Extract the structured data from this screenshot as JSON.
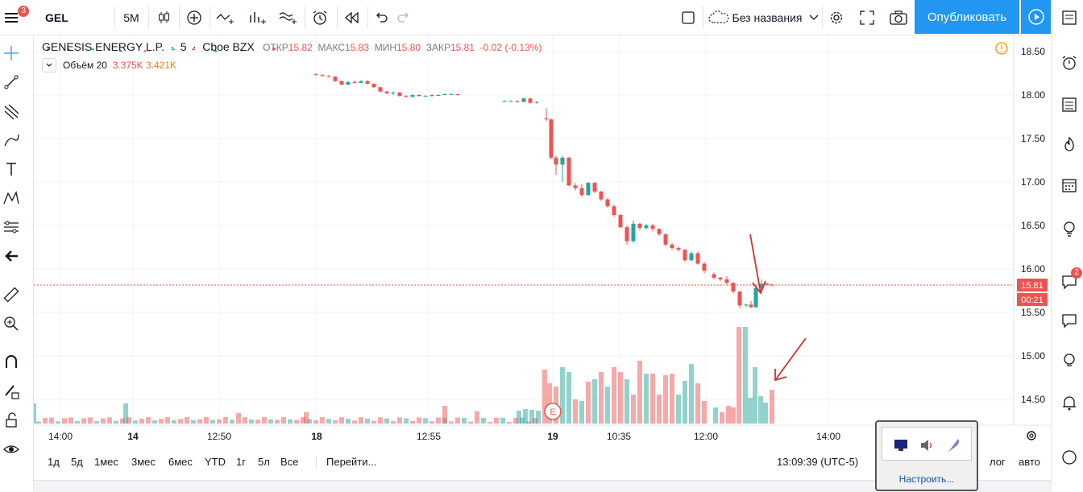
{
  "topbar": {
    "menu_badge": "3",
    "symbol": "GEL",
    "interval": "5М",
    "layout_name": "Без названия",
    "publish_label": "Опубликовать"
  },
  "legend": {
    "name": "GENESIS ENERGY L.P.",
    "interval": "5",
    "exchange": "Cboe BZX",
    "open_label": "ОТКР",
    "open": "15.82",
    "high_label": "МАКС",
    "high": "15.83",
    "low_label": "МИН",
    "low": "15.80",
    "close_label": "ЗАКР",
    "close": "15.81",
    "change": "-0.02 (-0.13%)",
    "volume_label": "Объём 20",
    "volume_value": "3.375K",
    "volume_ma": "3.421K"
  },
  "price_axis": {
    "ticks": [
      "18.50",
      "18.00",
      "17.50",
      "17.00",
      "16.50",
      "16.00",
      "15.50",
      "15.00",
      "14.50"
    ],
    "last_price": "15.81",
    "countdown": "00:21"
  },
  "time_axis": [
    "14:00",
    "14",
    "12:50",
    "18",
    "12:55",
    "19",
    "10:35",
    "12:00",
    "14:00"
  ],
  "bottombar": {
    "ranges": [
      "1д",
      "5д",
      "1мес",
      "3мес",
      "6мес",
      "YTD",
      "1г",
      "5л",
      "Все"
    ],
    "goto": "Перейти...",
    "clock": "13:09:39 (UTC-5)",
    "log": "лог",
    "auto": "авто"
  },
  "tray": {
    "link": "Настроить..."
  },
  "right_badge": "2",
  "earnings_marker": "E",
  "colors": {
    "up": "#26a69a",
    "down": "#ef5350",
    "accent": "#2196f3"
  },
  "chart_data": {
    "type": "candlestick",
    "title": "GENESIS ENERGY L.P. · 5 · Cboe BZX",
    "ylim": [
      14.2,
      18.65
    ],
    "candles_approx": [
      {
        "o": 18.24,
        "h": 18.25,
        "l": 18.22,
        "c": 18.23
      },
      {
        "o": 18.23,
        "h": 18.24,
        "l": 18.21,
        "c": 18.22
      },
      {
        "o": 18.22,
        "h": 18.23,
        "l": 18.2,
        "c": 18.21
      },
      {
        "o": 18.21,
        "h": 18.22,
        "l": 18.15,
        "c": 18.16
      },
      {
        "o": 18.16,
        "h": 18.17,
        "l": 18.11,
        "c": 18.12
      },
      {
        "o": 18.12,
        "h": 18.16,
        "l": 18.11,
        "c": 18.15
      },
      {
        "o": 18.15,
        "h": 18.17,
        "l": 18.13,
        "c": 18.14
      },
      {
        "o": 18.14,
        "h": 18.17,
        "l": 18.14,
        "c": 18.16
      },
      {
        "o": 18.16,
        "h": 18.17,
        "l": 18.12,
        "c": 18.13
      },
      {
        "o": 18.13,
        "h": 18.13,
        "l": 18.08,
        "c": 18.09
      },
      {
        "o": 18.09,
        "h": 18.09,
        "l": 18.03,
        "c": 18.04
      },
      {
        "o": 18.04,
        "h": 18.05,
        "l": 18.01,
        "c": 18.02
      },
      {
        "o": 18.02,
        "h": 18.04,
        "l": 18.0,
        "c": 18.03
      },
      {
        "o": 18.03,
        "h": 18.03,
        "l": 17.98,
        "c": 17.99
      },
      {
        "o": 17.99,
        "h": 18.0,
        "l": 17.97,
        "c": 17.98
      },
      {
        "o": 17.98,
        "h": 18.01,
        "l": 17.97,
        "c": 18.0
      },
      {
        "o": 18.0,
        "h": 18.01,
        "l": 17.98,
        "c": 17.99
      },
      {
        "o": 17.99,
        "h": 18.0,
        "l": 17.98,
        "c": 17.99
      },
      {
        "o": 17.99,
        "h": 18.01,
        "l": 17.98,
        "c": 18.0
      },
      {
        "o": 18.0,
        "h": 18.01,
        "l": 17.99,
        "c": 18.0
      },
      {
        "o": 18.0,
        "h": 18.02,
        "l": 18.0,
        "c": 18.01
      },
      {
        "o": 18.01,
        "h": 18.02,
        "l": 18.0,
        "c": 18.01
      },
      {
        "o": 18.01,
        "h": 18.01,
        "l": 17.99,
        "c": 18.0
      },
      {
        "o": 17.93,
        "h": 17.94,
        "l": 17.92,
        "c": 17.93
      },
      {
        "o": 17.93,
        "h": 17.94,
        "l": 17.92,
        "c": 17.93
      },
      {
        "o": 17.93,
        "h": 17.94,
        "l": 17.91,
        "c": 17.92
      },
      {
        "o": 17.92,
        "h": 17.97,
        "l": 17.92,
        "c": 17.96
      },
      {
        "o": 17.96,
        "h": 17.97,
        "l": 17.9,
        "c": 17.91
      },
      {
        "o": 17.91,
        "h": 17.93,
        "l": 17.9,
        "c": 17.92
      },
      {
        "o": 17.73,
        "h": 17.85,
        "l": 17.7,
        "c": 17.72
      },
      {
        "o": 17.72,
        "h": 17.73,
        "l": 17.26,
        "c": 17.28
      },
      {
        "o": 17.28,
        "h": 17.3,
        "l": 17.08,
        "c": 17.2
      },
      {
        "o": 17.2,
        "h": 17.3,
        "l": 17.0,
        "c": 17.28
      },
      {
        "o": 17.28,
        "h": 17.29,
        "l": 16.95,
        "c": 16.96
      },
      {
        "o": 16.96,
        "h": 16.99,
        "l": 16.9,
        "c": 16.93
      },
      {
        "o": 16.93,
        "h": 16.98,
        "l": 16.83,
        "c": 16.85
      },
      {
        "o": 16.85,
        "h": 17.0,
        "l": 16.84,
        "c": 16.99
      },
      {
        "o": 16.99,
        "h": 17.0,
        "l": 16.87,
        "c": 16.89
      },
      {
        "o": 16.89,
        "h": 16.9,
        "l": 16.78,
        "c": 16.8
      }
    ],
    "last_price": 15.81
  }
}
